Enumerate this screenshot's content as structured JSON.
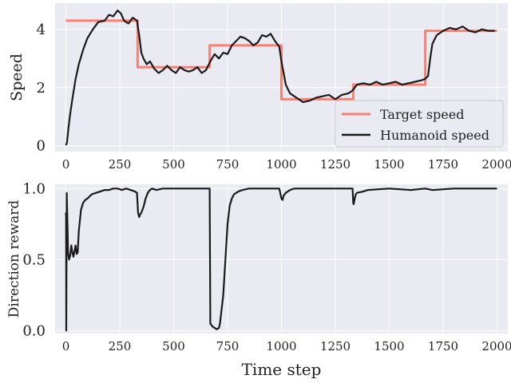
{
  "chart_data": [
    {
      "type": "line",
      "ylabel": "Speed",
      "xlim": [
        -50,
        2050
      ],
      "ylim": [
        -0.2,
        4.9
      ],
      "xticks": [
        0,
        250,
        500,
        750,
        1000,
        1250,
        1500,
        1750,
        2000
      ],
      "yticks": [
        0,
        2,
        4
      ],
      "grid": true,
      "legend_position": "lower-right",
      "series": [
        {
          "name": "Target speed",
          "color": "#fa8072",
          "x": [
            0,
            333,
            333,
            667,
            667,
            1000,
            1000,
            1333,
            1333,
            1667,
            1667,
            2000
          ],
          "y": [
            4.3,
            4.3,
            2.7,
            2.7,
            3.45,
            3.45,
            1.6,
            1.6,
            2.1,
            2.1,
            3.95,
            3.95
          ]
        },
        {
          "name": "Humanoid speed",
          "color": "#1a1a1a",
          "x": [
            0,
            5,
            12,
            20,
            30,
            45,
            60,
            80,
            100,
            125,
            150,
            180,
            200,
            220,
            240,
            255,
            270,
            290,
            310,
            330,
            340,
            350,
            360,
            375,
            390,
            410,
            430,
            450,
            470,
            490,
            510,
            530,
            550,
            570,
            590,
            610,
            630,
            650,
            670,
            690,
            710,
            730,
            750,
            770,
            790,
            810,
            830,
            850,
            870,
            890,
            910,
            930,
            950,
            970,
            990,
            1000,
            1010,
            1020,
            1040,
            1060,
            1080,
            1100,
            1130,
            1160,
            1190,
            1220,
            1250,
            1280,
            1310,
            1330,
            1340,
            1350,
            1380,
            1410,
            1440,
            1470,
            1500,
            1530,
            1560,
            1590,
            1620,
            1650,
            1667,
            1680,
            1690,
            1700,
            1720,
            1750,
            1780,
            1810,
            1840,
            1870,
            1900,
            1930,
            1960,
            1990
          ],
          "y": [
            0.02,
            0.1,
            0.6,
            1.1,
            1.6,
            2.3,
            2.8,
            3.3,
            3.7,
            4.0,
            4.25,
            4.3,
            4.5,
            4.45,
            4.65,
            4.55,
            4.3,
            4.2,
            4.4,
            4.3,
            3.8,
            3.2,
            3.0,
            2.8,
            2.9,
            2.65,
            2.5,
            2.6,
            2.75,
            2.6,
            2.5,
            2.7,
            2.6,
            2.55,
            2.6,
            2.7,
            2.5,
            2.6,
            2.9,
            3.15,
            3.0,
            3.2,
            3.15,
            3.45,
            3.6,
            3.75,
            3.7,
            3.6,
            3.45,
            3.55,
            3.8,
            3.75,
            3.85,
            3.6,
            3.4,
            2.9,
            2.5,
            2.1,
            1.8,
            1.7,
            1.6,
            1.5,
            1.55,
            1.65,
            1.7,
            1.75,
            1.6,
            1.75,
            1.8,
            1.9,
            2.0,
            2.1,
            2.15,
            2.1,
            2.2,
            2.1,
            2.15,
            2.2,
            2.1,
            2.15,
            2.2,
            2.25,
            2.3,
            2.4,
            3.0,
            3.5,
            3.8,
            3.95,
            4.05,
            4.0,
            4.1,
            3.95,
            3.9,
            4.0,
            3.95,
            3.95
          ]
        }
      ]
    },
    {
      "type": "line",
      "ylabel": "Direction reward",
      "xlabel": "Time step",
      "xlim": [
        -50,
        2050
      ],
      "ylim": [
        -0.02,
        1.03
      ],
      "xticks": [
        0,
        250,
        500,
        750,
        1000,
        1250,
        1500,
        1750,
        2000
      ],
      "yticks": [
        0.0,
        0.5,
        1.0
      ],
      "grid": true,
      "series": [
        {
          "color": "#1a1a1a",
          "x": [
            0,
            1,
            2,
            4,
            6,
            8,
            10,
            15,
            20,
            25,
            30,
            35,
            40,
            45,
            50,
            55,
            60,
            70,
            80,
            90,
            100,
            120,
            140,
            160,
            180,
            200,
            220,
            240,
            260,
            280,
            300,
            320,
            330,
            335,
            340,
            345,
            350,
            360,
            370,
            380,
            390,
            400,
            420,
            450,
            500,
            550,
            600,
            650,
            660,
            665,
            667,
            670,
            680,
            690,
            700,
            710,
            715,
            720,
            730,
            740,
            750,
            760,
            770,
            780,
            800,
            820,
            850,
            900,
            950,
            990,
            1000,
            1005,
            1010,
            1020,
            1040,
            1060,
            1100,
            1150,
            1200,
            1250,
            1300,
            1330,
            1333,
            1335,
            1340,
            1345,
            1350,
            1380,
            1400,
            1500,
            1600,
            1667,
            1700,
            1800,
            1900,
            2000
          ],
          "y": [
            0.83,
            0.8,
            0.0,
            0.97,
            0.85,
            0.7,
            0.55,
            0.5,
            0.53,
            0.6,
            0.55,
            0.52,
            0.56,
            0.6,
            0.54,
            0.55,
            0.7,
            0.85,
            0.9,
            0.92,
            0.93,
            0.96,
            0.97,
            0.98,
            0.99,
            0.99,
            1.0,
            1.0,
            0.99,
            1.0,
            0.99,
            0.98,
            0.97,
            0.83,
            0.8,
            0.82,
            0.83,
            0.87,
            0.93,
            0.97,
            0.99,
            1.0,
            0.99,
            1.0,
            1.0,
            1.0,
            1.0,
            1.0,
            1.0,
            1.0,
            1.0,
            0.05,
            0.03,
            0.02,
            0.01,
            0.02,
            0.05,
            0.12,
            0.25,
            0.5,
            0.75,
            0.88,
            0.93,
            0.96,
            0.98,
            0.99,
            1.0,
            1.0,
            1.0,
            1.0,
            0.93,
            0.92,
            0.95,
            0.97,
            0.99,
            1.0,
            1.0,
            1.0,
            1.0,
            1.0,
            1.0,
            1.0,
            0.9,
            0.89,
            0.93,
            0.96,
            0.97,
            0.98,
            0.99,
            1.0,
            0.99,
            1.0,
            0.99,
            1.0,
            1.0,
            1.0
          ]
        }
      ]
    }
  ]
}
